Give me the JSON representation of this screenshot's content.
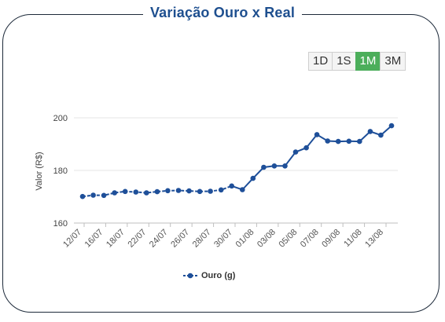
{
  "title": "Variação Ouro x Real",
  "range_buttons": [
    {
      "label": "1D",
      "active": false
    },
    {
      "label": "1S",
      "active": false
    },
    {
      "label": "1M",
      "active": true
    },
    {
      "label": "3M",
      "active": false
    }
  ],
  "legend": {
    "label": "Ouro (g)"
  },
  "colors": {
    "series": "#1e4f99",
    "title": "#1e4f8f",
    "active_button": "#4cae5b"
  },
  "chart_data": {
    "type": "line",
    "ylabel": "Valor (R$)",
    "ylim": [
      160,
      200
    ],
    "yticks": [
      160,
      180,
      200
    ],
    "x_tick_labels": [
      "12/07",
      "16/07",
      "18/07",
      "22/07",
      "24/07",
      "26/07",
      "28/07",
      "30/07",
      "01/08",
      "03/08",
      "05/08",
      "07/08",
      "09/08",
      "11/08",
      "13/08"
    ],
    "series": [
      {
        "name": "Ouro (g)",
        "values": [
          170.1,
          170.6,
          170.5,
          171.5,
          172.0,
          171.8,
          171.5,
          171.9,
          172.3,
          172.4,
          172.2,
          172.0,
          172.1,
          172.6,
          174.1,
          172.7,
          177.0,
          181.2,
          181.7,
          181.7,
          187.0,
          188.6,
          193.6,
          191.2,
          191.0,
          191.1,
          191.0,
          194.8,
          193.4,
          197.0
        ]
      }
    ]
  }
}
